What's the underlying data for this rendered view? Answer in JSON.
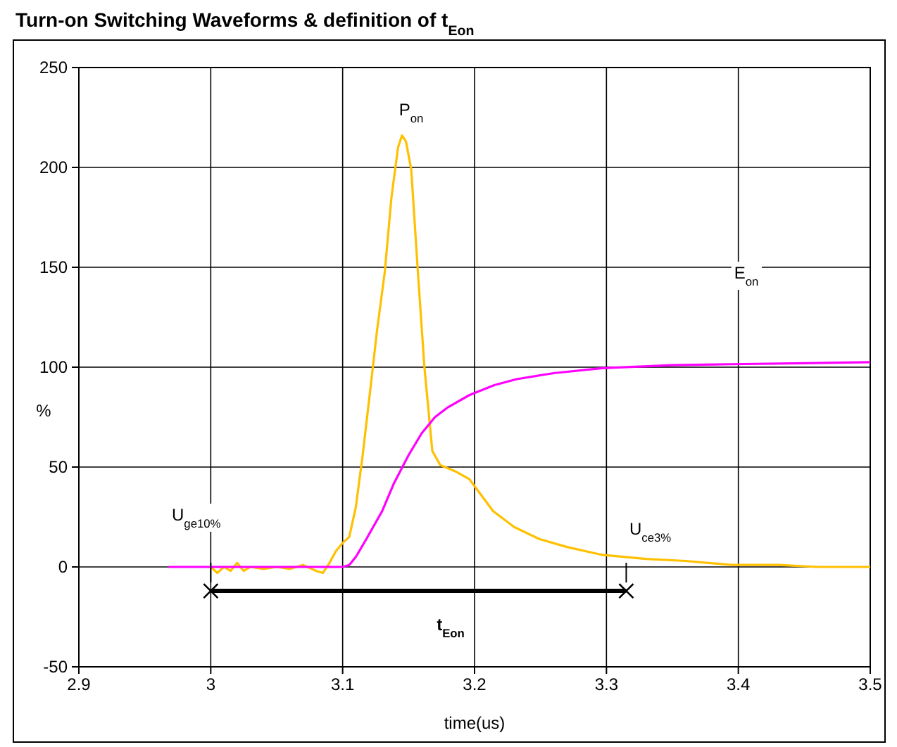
{
  "chart_data": {
    "type": "line",
    "title": "Turn-on Switching Waveforms & definition of t$_{Eon}$",
    "xlabel": "time(us)",
    "ylabel": "%",
    "xlim": [
      2.9,
      3.5
    ],
    "xticks": [
      2.9,
      3,
      3.1,
      3.2,
      3.3,
      3.4,
      3.5
    ],
    "ylim": [
      -50,
      250
    ],
    "yticks": [
      -50,
      0,
      50,
      100,
      150,
      200,
      250
    ],
    "grid": true,
    "marker": "none",
    "line_style": "solid",
    "series": [
      {
        "color": "#ffc000",
        "x": [
          3.0,
          3.005,
          3.01,
          3.015,
          3.02,
          3.025,
          3.03,
          3.04,
          3.05,
          3.06,
          3.07,
          3.08,
          3.085,
          3.09,
          3.095,
          3.1,
          3.105,
          3.11,
          3.115,
          3.121,
          3.126,
          3.132,
          3.137,
          3.142,
          3.145,
          3.148,
          3.152,
          3.157,
          3.162,
          3.168,
          3.174,
          3.185,
          3.196,
          3.205,
          3.214,
          3.23,
          3.249,
          3.27,
          3.297,
          3.33,
          3.36,
          3.395,
          3.43,
          3.46,
          3.5
        ],
        "values": [
          0,
          -3,
          0,
          -2,
          2,
          -2,
          0,
          -1,
          0,
          -1,
          1,
          -2,
          -3,
          2,
          8,
          12,
          15,
          30,
          55,
          89,
          118,
          148,
          185,
          210,
          216,
          213,
          199,
          148,
          100,
          58,
          51,
          48,
          44,
          36,
          28,
          20,
          14,
          10,
          6,
          4,
          3,
          1,
          1,
          0,
          0
        ]
      },
      {
        "color": "#ff00ff",
        "x": [
          2.968,
          3.0,
          3.05,
          3.09,
          3.1,
          3.105,
          3.11,
          3.118,
          3.13,
          3.139,
          3.15,
          3.16,
          3.17,
          3.18,
          3.196,
          3.215,
          3.232,
          3.26,
          3.297,
          3.35,
          3.395,
          3.45,
          3.5
        ],
        "values": [
          0,
          0,
          0,
          0,
          0,
          1,
          5,
          14,
          28,
          42,
          56,
          67,
          75,
          80,
          86,
          91,
          94,
          97,
          99.5,
          101,
          101.5,
          102,
          102.5
        ]
      },
      {
        "type": "line",
        "marker": "cross",
        "color": "#000000",
        "x": [
          3.0,
          3.315
        ],
        "values": [
          -12,
          -12
        ]
      }
    ],
    "annotations": [
      "P$_{on}$",
      "E$_{on}$",
      "U$_{ge10%}$",
      "U$_{ce3%}$",
      "t$_{Eon}$"
    ]
  }
}
